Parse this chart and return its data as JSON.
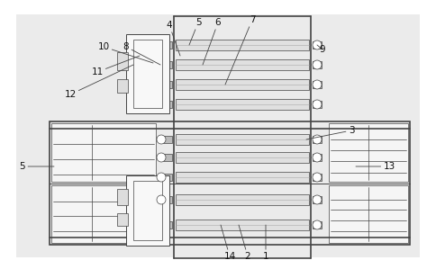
{
  "bg_color": "#ffffff",
  "lc": "#444444",
  "lc_light": "#888888",
  "fig_width": 4.84,
  "fig_height": 3.09,
  "dpi": 100,
  "roller_color": "#e0e0e0",
  "cap_color": "#bbbbbb",
  "box_color": "#f0f0f0",
  "dot_bg": "#ebebeb"
}
